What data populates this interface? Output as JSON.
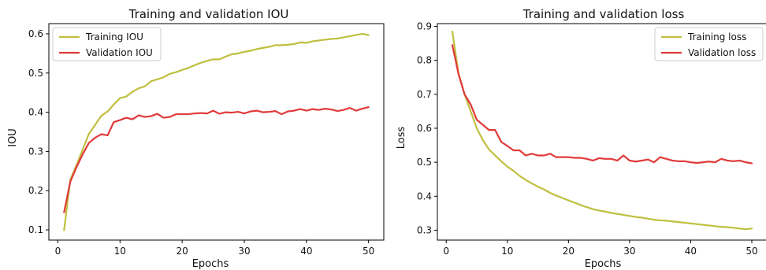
{
  "chart_data": [
    {
      "type": "line",
      "title": "Training and validation IOU",
      "xlabel": "Epochs",
      "ylabel": "IOU",
      "xlim": [
        -1.45,
        52.45
      ],
      "ylim": [
        0.074,
        0.626
      ],
      "xticks": [
        0,
        10,
        20,
        30,
        40,
        50
      ],
      "yticks": [
        0.1,
        0.2,
        0.3,
        0.4,
        0.5,
        0.6
      ],
      "xtick_labels": [
        "0",
        "10",
        "20",
        "30",
        "40",
        "50"
      ],
      "ytick_labels": [
        "0.1",
        "0.2",
        "0.3",
        "0.4",
        "0.5",
        "0.6"
      ],
      "legend_position": "top-left",
      "grid": false,
      "x": [
        1,
        2,
        3,
        4,
        5,
        6,
        7,
        8,
        9,
        10,
        11,
        12,
        13,
        14,
        15,
        16,
        17,
        18,
        19,
        20,
        21,
        22,
        23,
        24,
        25,
        26,
        27,
        28,
        29,
        30,
        31,
        32,
        33,
        34,
        35,
        36,
        37,
        38,
        39,
        40,
        41,
        42,
        43,
        44,
        45,
        46,
        47,
        48,
        49,
        50
      ],
      "series": [
        {
          "name": "Training IOU",
          "color": "#bfbf3f",
          "values": [
            0.099,
            0.228,
            0.265,
            0.305,
            0.345,
            0.368,
            0.391,
            0.402,
            0.42,
            0.436,
            0.44,
            0.452,
            0.461,
            0.466,
            0.479,
            0.484,
            0.489,
            0.498,
            0.502,
            0.508,
            0.513,
            0.52,
            0.526,
            0.531,
            0.535,
            0.535,
            0.542,
            0.548,
            0.55,
            0.554,
            0.557,
            0.561,
            0.564,
            0.567,
            0.571,
            0.571,
            0.572,
            0.574,
            0.578,
            0.577,
            0.581,
            0.583,
            0.585,
            0.587,
            0.588,
            0.591,
            0.594,
            0.597,
            0.6,
            0.597
          ]
        },
        {
          "name": "Validation IOU",
          "color": "#e03a3a",
          "values": [
            0.145,
            0.223,
            0.26,
            0.293,
            0.322,
            0.335,
            0.344,
            0.341,
            0.375,
            0.38,
            0.386,
            0.382,
            0.392,
            0.388,
            0.39,
            0.396,
            0.386,
            0.388,
            0.395,
            0.395,
            0.395,
            0.397,
            0.398,
            0.397,
            0.404,
            0.396,
            0.4,
            0.399,
            0.401,
            0.397,
            0.402,
            0.404,
            0.4,
            0.401,
            0.403,
            0.395,
            0.402,
            0.404,
            0.408,
            0.404,
            0.408,
            0.406,
            0.409,
            0.407,
            0.403,
            0.406,
            0.411,
            0.404,
            0.409,
            0.413
          ]
        }
      ]
    },
    {
      "type": "line",
      "title": "Training and validation loss",
      "xlabel": "Epochs",
      "ylabel": "Loss",
      "xlim": [
        -1.45,
        52.45
      ],
      "ylim": [
        0.271,
        0.908
      ],
      "xticks": [
        0,
        10,
        20,
        30,
        40,
        50
      ],
      "yticks": [
        0.3,
        0.4,
        0.5,
        0.6,
        0.7,
        0.8,
        0.9
      ],
      "xtick_labels": [
        "0",
        "10",
        "20",
        "30",
        "40",
        "50"
      ],
      "ytick_labels": [
        "0.3",
        "0.4",
        "0.5",
        "0.6",
        "0.7",
        "0.8",
        "0.9"
      ],
      "legend_position": "top-right",
      "grid": false,
      "x": [
        1,
        2,
        3,
        4,
        5,
        6,
        7,
        8,
        9,
        10,
        11,
        12,
        13,
        14,
        15,
        16,
        17,
        18,
        19,
        20,
        21,
        22,
        23,
        24,
        25,
        26,
        27,
        28,
        29,
        30,
        31,
        32,
        33,
        34,
        35,
        36,
        37,
        38,
        39,
        40,
        41,
        42,
        43,
        44,
        45,
        46,
        47,
        48,
        49,
        50
      ],
      "series": [
        {
          "name": "Training loss",
          "color": "#bfbf3f",
          "values": [
            0.885,
            0.762,
            0.7,
            0.65,
            0.6,
            0.565,
            0.538,
            0.52,
            0.503,
            0.487,
            0.475,
            0.46,
            0.448,
            0.438,
            0.428,
            0.42,
            0.41,
            0.402,
            0.395,
            0.388,
            0.381,
            0.374,
            0.368,
            0.362,
            0.358,
            0.355,
            0.351,
            0.348,
            0.345,
            0.342,
            0.339,
            0.337,
            0.334,
            0.331,
            0.329,
            0.328,
            0.326,
            0.324,
            0.322,
            0.32,
            0.318,
            0.316,
            0.314,
            0.312,
            0.31,
            0.309,
            0.307,
            0.305,
            0.303,
            0.305
          ]
        },
        {
          "name": "Validation loss",
          "color": "#e03a3a",
          "values": [
            0.845,
            0.76,
            0.7,
            0.67,
            0.625,
            0.61,
            0.595,
            0.595,
            0.56,
            0.548,
            0.535,
            0.535,
            0.52,
            0.525,
            0.52,
            0.52,
            0.525,
            0.515,
            0.515,
            0.515,
            0.513,
            0.513,
            0.51,
            0.505,
            0.512,
            0.51,
            0.51,
            0.505,
            0.52,
            0.505,
            0.502,
            0.505,
            0.508,
            0.5,
            0.515,
            0.51,
            0.505,
            0.503,
            0.503,
            0.5,
            0.498,
            0.5,
            0.502,
            0.5,
            0.51,
            0.505,
            0.503,
            0.505,
            0.5,
            0.497
          ]
        }
      ]
    }
  ]
}
